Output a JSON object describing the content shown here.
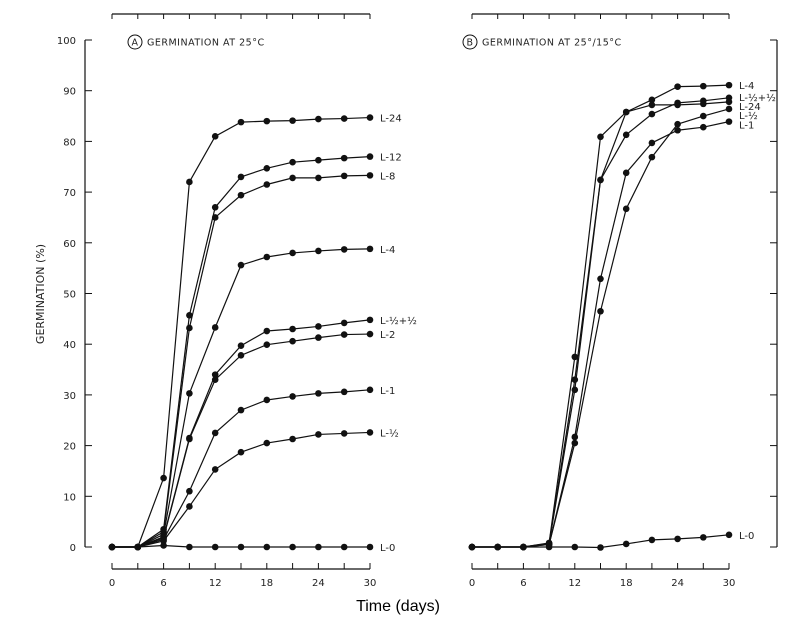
{
  "figure": {
    "xlabel": "Time (days)",
    "ylabel": "GERMINATION (%)"
  },
  "chart_data": [
    {
      "type": "line",
      "panel_letter": "A",
      "title": "GERMINATION AT 25°C",
      "xlim": [
        0,
        30
      ],
      "ylim": [
        0,
        100
      ],
      "xticks": [
        0,
        6,
        12,
        18,
        24,
        30
      ],
      "yticks": [
        0,
        10,
        20,
        30,
        40,
        50,
        60,
        70,
        80,
        90,
        100
      ],
      "x": [
        0,
        3,
        6,
        9,
        12,
        15,
        18,
        21,
        24,
        27,
        30
      ],
      "color": "#111111",
      "series": [
        {
          "name": "L-24",
          "values": [
            0,
            0,
            13.6,
            72,
            81,
            83.8,
            84,
            84.1,
            84.4,
            84.5,
            84.7
          ]
        },
        {
          "name": "L-12",
          "values": [
            0,
            0,
            3.5,
            45.7,
            67,
            73,
            74.7,
            75.9,
            76.3,
            76.7,
            77
          ]
        },
        {
          "name": "L-8",
          "values": [
            0,
            0,
            3,
            43.2,
            65,
            69.4,
            71.5,
            72.8,
            72.8,
            73.2,
            73.3
          ]
        },
        {
          "name": "L-4",
          "values": [
            0,
            0,
            2.5,
            30.3,
            43.3,
            55.6,
            57.2,
            58,
            58.4,
            58.7,
            58.8
          ]
        },
        {
          "name": "L-½+½",
          "values": [
            0,
            0,
            2,
            21.5,
            34,
            39.7,
            42.6,
            43,
            43.5,
            44.2,
            44.8
          ]
        },
        {
          "name": "L-2",
          "values": [
            0,
            0,
            1.8,
            21.3,
            33,
            37.8,
            39.9,
            40.6,
            41.3,
            41.9,
            42
          ]
        },
        {
          "name": "L-1",
          "values": [
            0,
            0,
            1.5,
            11,
            22.5,
            27,
            29,
            29.7,
            30.3,
            30.6,
            31
          ]
        },
        {
          "name": "L-½",
          "values": [
            0,
            0,
            1.2,
            8,
            15.3,
            18.7,
            20.5,
            21.3,
            22.2,
            22.4,
            22.6
          ]
        },
        {
          "name": "L-0",
          "values": [
            0,
            0,
            0.3,
            0,
            0,
            0,
            0,
            0,
            0,
            0,
            0
          ]
        }
      ]
    },
    {
      "type": "line",
      "panel_letter": "B",
      "title": "GERMINATION AT 25°/15°C",
      "xlim": [
        0,
        30
      ],
      "ylim": [
        0,
        100
      ],
      "xticks": [
        0,
        6,
        12,
        18,
        24,
        30
      ],
      "yticks": [
        0,
        10,
        20,
        30,
        40,
        50,
        60,
        70,
        80,
        90,
        100
      ],
      "x": [
        0,
        3,
        6,
        9,
        12,
        15,
        18,
        21,
        24,
        27,
        30
      ],
      "color": "#111111",
      "series": [
        {
          "name": "L-4",
          "values": [
            0,
            0,
            0,
            0.8,
            37.5,
            80.9,
            85.8,
            88.2,
            90.8,
            90.9,
            91.1
          ]
        },
        {
          "name": "L-½+½",
          "values": [
            0,
            0,
            0,
            0.7,
            31,
            72.4,
            81.3,
            85.4,
            87.6,
            88,
            88.6
          ]
        },
        {
          "name": "L-24",
          "values": [
            0,
            0,
            0,
            0.7,
            33,
            72.4,
            85.8,
            87.2,
            87.2,
            87.4,
            87.8
          ]
        },
        {
          "name": "L-½",
          "values": [
            0,
            0,
            0,
            0.5,
            20.5,
            46.5,
            66.7,
            76.9,
            83.4,
            85,
            86.4
          ]
        },
        {
          "name": "L-1",
          "values": [
            0,
            0,
            0,
            0.5,
            21.7,
            52.9,
            73.8,
            79.7,
            82.2,
            82.8,
            83.9
          ]
        },
        {
          "name": "L-0",
          "values": [
            0,
            0,
            0,
            0,
            0,
            -0.1,
            0.6,
            1.4,
            1.6,
            1.9,
            2.4
          ]
        }
      ]
    }
  ]
}
